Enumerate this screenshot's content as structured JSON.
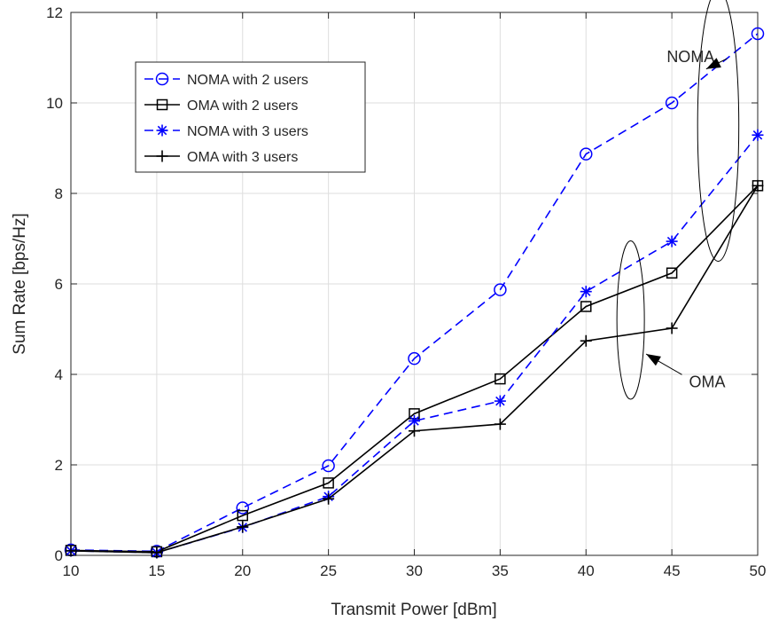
{
  "chart_data": {
    "type": "line",
    "title": "",
    "xlabel": "Transmit Power [dBm]",
    "ylabel": "Sum Rate [bps/Hz]",
    "xlim": [
      10,
      50
    ],
    "ylim": [
      0,
      12
    ],
    "xticks": [
      10,
      15,
      20,
      25,
      30,
      35,
      40,
      45,
      50
    ],
    "yticks": [
      0,
      2,
      4,
      6,
      8,
      10,
      12
    ],
    "grid": true,
    "legend_position": "upper-left",
    "x": [
      10,
      15,
      20,
      25,
      30,
      35,
      40,
      45,
      50
    ],
    "series": [
      {
        "name": "NOMA with 2 users",
        "values": [
          0.12,
          0.09,
          1.05,
          1.98,
          4.35,
          5.87,
          8.87,
          10.0,
          11.53
        ],
        "color": "#0000ff",
        "dash": "dashed",
        "marker": "circle"
      },
      {
        "name": "OMA with 2 users",
        "values": [
          0.11,
          0.08,
          0.88,
          1.6,
          3.13,
          3.9,
          5.5,
          6.24,
          8.17
        ],
        "color": "#000000",
        "dash": "solid",
        "marker": "square"
      },
      {
        "name": "NOMA with 3 users",
        "values": [
          0.1,
          0.06,
          0.62,
          1.3,
          2.97,
          3.41,
          5.83,
          6.94,
          9.29
        ],
        "color": "#0000ff",
        "dash": "dashed",
        "marker": "asterisk"
      },
      {
        "name": "OMA with 3 users",
        "values": [
          0.1,
          0.06,
          0.63,
          1.25,
          2.75,
          2.9,
          4.74,
          5.02,
          8.17
        ],
        "color": "#000000",
        "dash": "solid",
        "marker": "plus"
      }
    ],
    "annotations": [
      {
        "text": "NOMA",
        "ellipse_center": [
          47.7,
          9.5
        ],
        "ellipse_radii": [
          1.2,
          3.0
        ],
        "text_at": [
          44.7,
          10.9
        ],
        "arrow_to": [
          47.0,
          10.75
        ]
      },
      {
        "text": "OMA",
        "ellipse_center": [
          42.6,
          5.2
        ],
        "ellipse_radii": [
          0.8,
          1.75
        ],
        "text_at": [
          46.0,
          3.72
        ],
        "arrow_to": [
          43.5,
          4.45
        ]
      }
    ]
  }
}
